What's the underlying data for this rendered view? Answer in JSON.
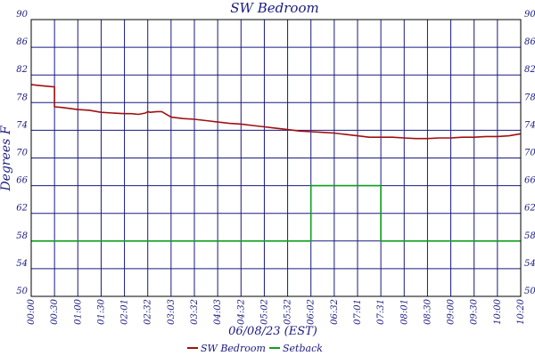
{
  "chart_data": {
    "type": "line",
    "title": "SW Bedroom",
    "xlabel": "06/08/23 (EST)",
    "ylabel": "Degrees F",
    "ylim": [
      50,
      90
    ],
    "yticks": [
      50,
      54,
      58,
      62,
      66,
      70,
      74,
      78,
      82,
      86,
      90
    ],
    "categories": [
      "00:00",
      "00:30",
      "01:00",
      "01:30",
      "02:01",
      "02:32",
      "03:03",
      "03:32",
      "04:03",
      "04:32",
      "05:02",
      "05:32",
      "06:02",
      "06:32",
      "07:01",
      "07:31",
      "08:01",
      "08:30",
      "09:00",
      "09:30",
      "10:00",
      "10:20"
    ],
    "grid": true,
    "legend_position": "bottom-center",
    "series": [
      {
        "name": "SW Bedroom",
        "color": "#a01010",
        "x": [
          0,
          0.3,
          0.9,
          1.0,
          1.0,
          1.3,
          2.0,
          2.5,
          3.0,
          3.5,
          4.0,
          4.3,
          4.6,
          4.9,
          5.0,
          5.1,
          5.4,
          5.6,
          6.0,
          6.5,
          7.0,
          7.5,
          8.0,
          8.5,
          9.0,
          9.5,
          10.0,
          10.5,
          11.0,
          11.5,
          12.0,
          12.5,
          13.0,
          13.5,
          14.0,
          14.5,
          15.0,
          15.5,
          16.0,
          16.5,
          17.0,
          17.5,
          18.0,
          18.5,
          19.0,
          19.5,
          20.0,
          20.5,
          21.0
        ],
        "values": [
          80.6,
          80.5,
          80.3,
          80.3,
          77.4,
          77.3,
          77.0,
          76.9,
          76.6,
          76.5,
          76.4,
          76.4,
          76.3,
          76.5,
          76.7,
          76.6,
          76.7,
          76.7,
          75.9,
          75.7,
          75.6,
          75.4,
          75.2,
          75.0,
          74.9,
          74.7,
          74.5,
          74.3,
          74.1,
          73.9,
          73.8,
          73.7,
          73.6,
          73.4,
          73.2,
          73.0,
          73.0,
          73.0,
          72.9,
          72.8,
          72.8,
          72.9,
          72.9,
          73.0,
          73.0,
          73.1,
          73.1,
          73.2,
          73.5
        ]
      },
      {
        "name": "Setback",
        "color": "#10a020",
        "x": [
          0,
          12.0,
          12.0,
          15.0,
          15.0,
          21.0
        ],
        "values": [
          58,
          58,
          66,
          66,
          58,
          58
        ]
      }
    ]
  }
}
